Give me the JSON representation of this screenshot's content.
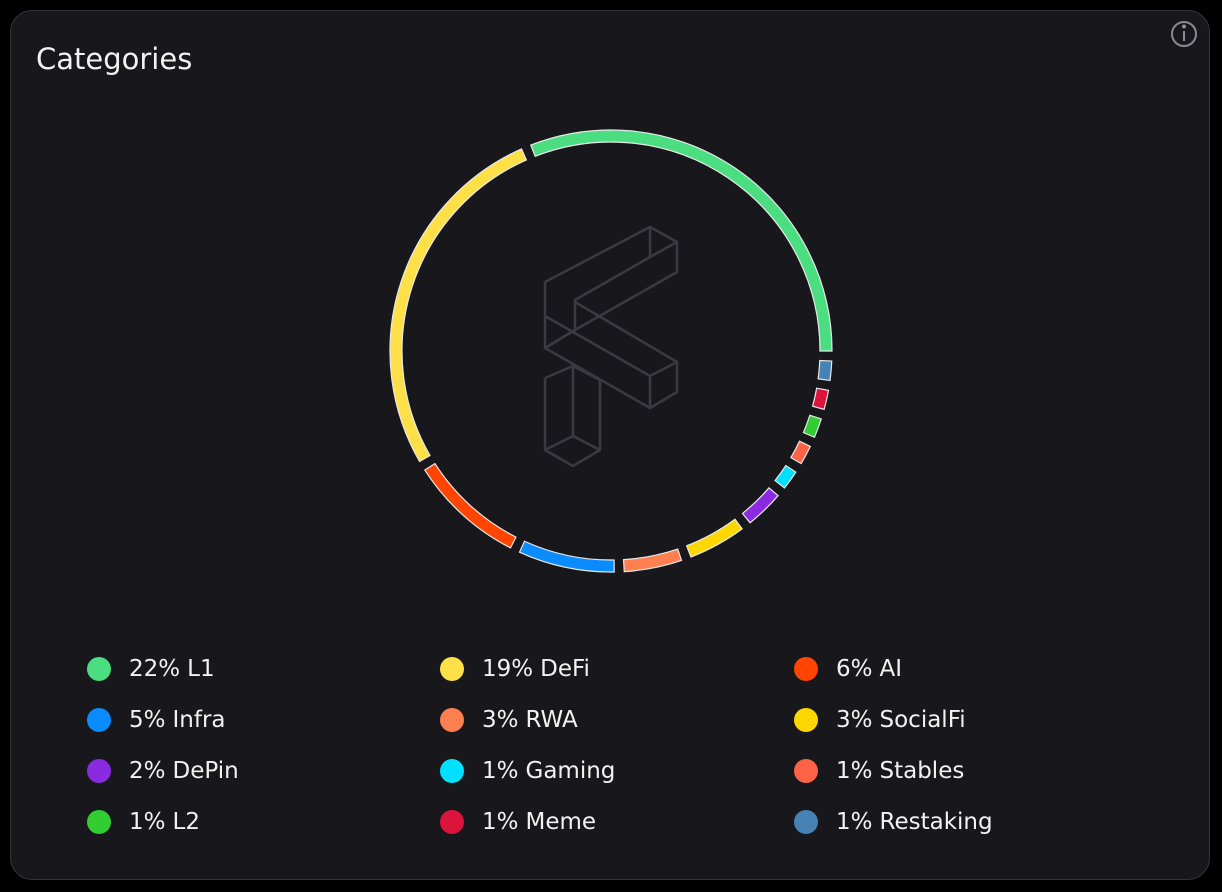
{
  "chart_data": {
    "type": "donut",
    "title": "Categories",
    "categories": [
      "L1",
      "DeFi",
      "AI",
      "Infra",
      "RWA",
      "SocialFi",
      "DePin",
      "Gaming",
      "Stables",
      "L2",
      "Meme",
      "Restaking"
    ],
    "values": [
      22,
      19,
      6,
      5,
      3,
      3,
      2,
      1,
      1,
      1,
      1,
      1
    ],
    "value_labels": [
      "22%",
      "19%",
      "6%",
      "5%",
      "3%",
      "3%",
      "2%",
      "1%",
      "1%",
      "1%",
      "1%",
      "1%"
    ],
    "colors": [
      "#4ade80",
      "#fde047",
      "#ff4500",
      "#0a8cff",
      "#ff7f50",
      "#ffd700",
      "#8a2be2",
      "#00e0ff",
      "#ff6347",
      "#32cd32",
      "#dc143c",
      "#4682b4"
    ]
  }
}
